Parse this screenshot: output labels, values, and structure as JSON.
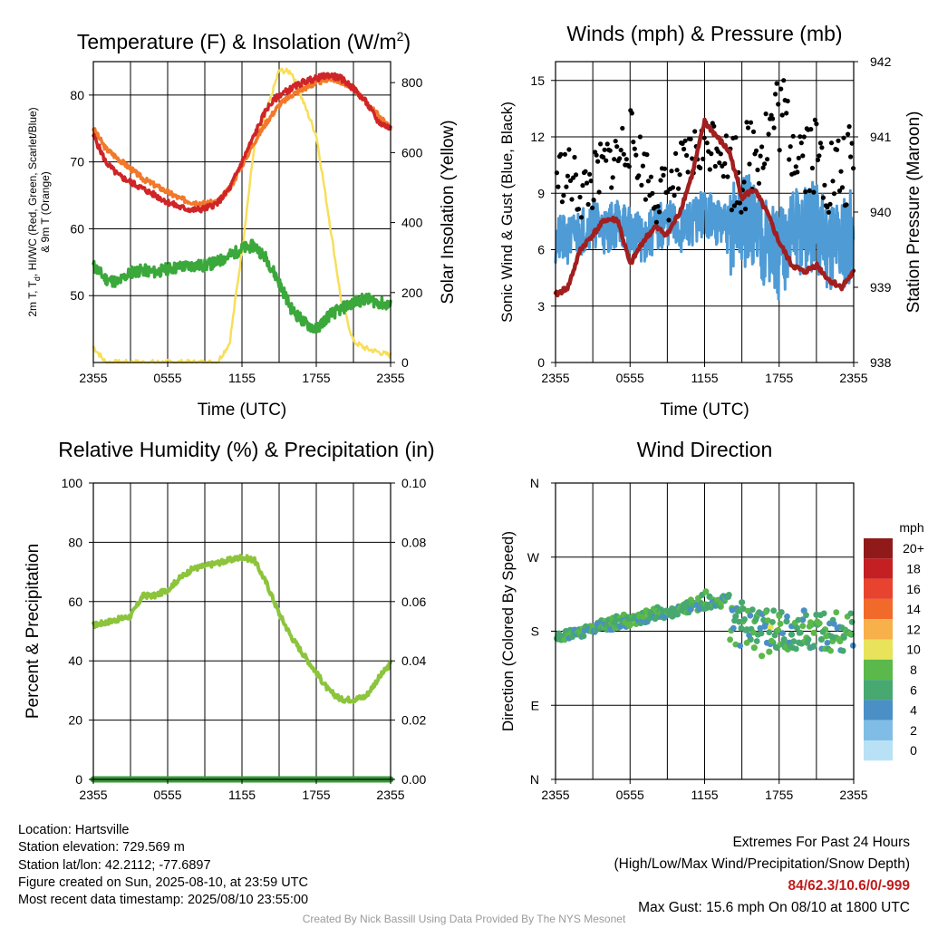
{
  "colors": {
    "red": "#cf2527",
    "orange": "#f2782a",
    "green": "#3aa83a",
    "yellow": "#f7df5a",
    "blue": "#4e9bd6",
    "maroon": "#a11f1f",
    "black": "#000000",
    "rh": "#8cc43c",
    "precip": "#3a9a3a"
  },
  "wind_speed_colors": [
    "#b8e1f5",
    "#7fbde6",
    "#4a8fc6",
    "#47a870",
    "#5bb84a",
    "#e8e35a",
    "#f7b04a",
    "#f26a2a",
    "#e8432f",
    "#c41f22",
    "#901a1a"
  ],
  "time_ticks": [
    "2355",
    "0555",
    "1155",
    "1755",
    "2355"
  ],
  "charts": [
    {
      "id": "temp",
      "title_main": "Temperature (F) & Insolation (W/m",
      "title_sup": "2",
      "title_end": ")",
      "xlabel": "Time (UTC)",
      "ylabel_lines": [
        "2m T, T",
        "d",
        ", HI/WC (Red, Green, Scarlet/Blue)",
        "& 9m T (Orange)"
      ],
      "ylabel_right": "Solar Insolation (Yellow)",
      "yticks_left": [
        "50",
        "60",
        "70",
        "80"
      ],
      "yticks_right": [
        "0",
        "200",
        "400",
        "600",
        "800"
      ]
    },
    {
      "id": "wind",
      "title": "Winds (mph) & Pressure (mb)",
      "xlabel": "Time (UTC)",
      "ylabel": "Sonic Wind & Gust (Blue, Black)",
      "ylabel_right": "Station Pressure (Maroon)",
      "yticks_left": [
        "0",
        "3",
        "6",
        "9",
        "12",
        "15"
      ],
      "yticks_right": [
        "938",
        "939",
        "940",
        "941",
        "942"
      ]
    },
    {
      "id": "rh",
      "title": "Relative Humidity (%) & Precipitation (in)",
      "ylabel": "Percent & Precipitation",
      "yticks_left": [
        "0",
        "20",
        "40",
        "60",
        "80",
        "100"
      ],
      "yticks_right": [
        "0.00",
        "0.02",
        "0.04",
        "0.06",
        "0.08",
        "0.10"
      ]
    },
    {
      "id": "wdir",
      "title": "Wind Direction",
      "ylabel": "Direction (Colored By Speed)",
      "yticks_left": [
        "N",
        "E",
        "S",
        "W",
        "N"
      ],
      "legend_title": "mph",
      "legend_labels": [
        "0",
        "2",
        "4",
        "6",
        "8",
        "10",
        "12",
        "14",
        "16",
        "18",
        "20+"
      ]
    }
  ],
  "chart_data": [
    {
      "type": "line",
      "title": "Temperature (F) & Insolation (W/m2)",
      "x_hours": [
        0,
        1,
        2,
        3,
        4,
        5,
        6,
        7,
        8,
        9,
        10,
        11,
        12,
        13,
        14,
        15,
        16,
        17,
        18,
        19,
        20,
        21,
        22,
        23,
        24
      ],
      "x_range": [
        0,
        24
      ],
      "ylim": [
        40,
        85
      ],
      "ylim_right": [
        0,
        860
      ],
      "series": [
        {
          "name": "2m T",
          "color_key": "red",
          "values": [
            74,
            70,
            68,
            67,
            66,
            65,
            64,
            63.2,
            62.8,
            63,
            63.8,
            66,
            70,
            74,
            78,
            80,
            81,
            82,
            82.5,
            83,
            82.5,
            81,
            79,
            76,
            75
          ]
        },
        {
          "name": "9m T",
          "color_key": "orange",
          "values": [
            75,
            72,
            70.5,
            69,
            67.5,
            66.5,
            65.5,
            64.5,
            64,
            63.8,
            64,
            66,
            69.5,
            73,
            76,
            78.5,
            80,
            81,
            81.8,
            82.5,
            82,
            81,
            79,
            77,
            75
          ]
        },
        {
          "name": "Td",
          "color_key": "green",
          "values": [
            54.5,
            52.5,
            52,
            53.5,
            53.8,
            53.5,
            54,
            54.3,
            54.5,
            54.5,
            55,
            56,
            57,
            57.5,
            55.5,
            52,
            48,
            46,
            45,
            47,
            48,
            49,
            49.5,
            49,
            48.5
          ]
        },
        {
          "name": "Solar Insolation",
          "color_key": "yellow",
          "axis": "right",
          "values": [
            45,
            0,
            0,
            0,
            0,
            0,
            0,
            0,
            0,
            0,
            0,
            55,
            320,
            620,
            720,
            835,
            830,
            740,
            650,
            420,
            180,
            60,
            40,
            30,
            20
          ]
        }
      ]
    },
    {
      "type": "line",
      "title": "Winds (mph) & Pressure (mb)",
      "x_hours": [
        0,
        1,
        2,
        3,
        4,
        5,
        6,
        7,
        8,
        9,
        10,
        11,
        12,
        13,
        14,
        15,
        16,
        17,
        18,
        19,
        20,
        21,
        22,
        23,
        24
      ],
      "x_range": [
        0,
        24
      ],
      "ylim": [
        0,
        16
      ],
      "ylim_right": [
        938,
        942
      ],
      "series": [
        {
          "name": "Sonic Wind",
          "color_key": "blue",
          "values": [
            6.5,
            6.5,
            7,
            7.5,
            7,
            7.5,
            7,
            6.5,
            7,
            7.5,
            7,
            7.5,
            8,
            7.5,
            7,
            7.5,
            7.5,
            6.5,
            5.5,
            7,
            7,
            7,
            6.5,
            6.5,
            7
          ]
        },
        {
          "name": "Gust",
          "color_key": "black",
          "type": "scatter",
          "values": [
            10,
            10,
            9,
            9.5,
            10.5,
            11,
            12,
            10.5,
            9,
            9,
            10,
            11,
            11.5,
            12,
            10.5,
            10,
            11.5,
            12,
            13.5,
            12,
            11.5,
            11,
            10,
            10,
            10.5
          ]
        },
        {
          "name": "Station Pressure",
          "color_key": "maroon",
          "axis": "right",
          "values": [
            938.9,
            939,
            939.5,
            939.7,
            939.9,
            939.9,
            939.3,
            939.6,
            939.8,
            939.7,
            940,
            940.5,
            941.2,
            941,
            940.8,
            940.2,
            940.3,
            940,
            939.6,
            939.3,
            939.2,
            939.3,
            939.1,
            939,
            939.2
          ]
        }
      ]
    },
    {
      "type": "line",
      "title": "Relative Humidity (%) & Precipitation (in)",
      "x_hours": [
        0,
        1,
        2,
        3,
        4,
        5,
        6,
        7,
        8,
        9,
        10,
        11,
        12,
        13,
        14,
        15,
        16,
        17,
        18,
        19,
        20,
        21,
        22,
        23,
        24
      ],
      "x_range": [
        0,
        24
      ],
      "ylim": [
        0,
        100
      ],
      "ylim_right": [
        0,
        0.1
      ],
      "series": [
        {
          "name": "Relative Humidity",
          "color_key": "rh",
          "values": [
            52,
            53,
            54,
            55,
            62,
            62,
            64,
            68,
            71,
            72,
            73,
            74,
            75,
            74,
            66,
            56,
            48,
            42,
            36,
            30,
            27,
            27,
            28,
            34,
            39
          ]
        },
        {
          "name": "Precipitation",
          "color_key": "precip",
          "axis": "right",
          "values": [
            0,
            0,
            0,
            0,
            0,
            0,
            0,
            0,
            0,
            0,
            0,
            0,
            0,
            0,
            0,
            0,
            0,
            0,
            0,
            0,
            0,
            0,
            0,
            0,
            0
          ]
        }
      ]
    },
    {
      "type": "scatter",
      "title": "Wind Direction",
      "x_range": [
        0,
        24
      ],
      "ylim": [
        0,
        360
      ],
      "yticks": [
        "N",
        "E",
        "S",
        "W",
        "N"
      ],
      "points": [
        {
          "x": 0.2,
          "dir": 173,
          "spd": 6
        },
        {
          "x": 0.5,
          "dir": 174,
          "spd": 6
        },
        {
          "x": 0.8,
          "dir": 176,
          "spd": 5
        },
        {
          "x": 1.0,
          "dir": 178,
          "spd": 6
        },
        {
          "x": 1.3,
          "dir": 181,
          "spd": 7
        },
        {
          "x": 1.6,
          "dir": 180,
          "spd": 5
        },
        {
          "x": 1.9,
          "dir": 182,
          "spd": 6
        },
        {
          "x": 2.2,
          "dir": 183,
          "spd": 7
        },
        {
          "x": 2.5,
          "dir": 184,
          "spd": 6
        },
        {
          "x": 2.8,
          "dir": 186,
          "spd": 7
        },
        {
          "x": 3.1,
          "dir": 185,
          "spd": 6
        },
        {
          "x": 3.4,
          "dir": 190,
          "spd": 7
        },
        {
          "x": 3.7,
          "dir": 193,
          "spd": 6
        },
        {
          "x": 4.0,
          "dir": 192,
          "spd": 7
        },
        {
          "x": 4.3,
          "dir": 194,
          "spd": 6
        },
        {
          "x": 4.6,
          "dir": 196,
          "spd": 7
        },
        {
          "x": 4.9,
          "dir": 198,
          "spd": 6
        },
        {
          "x": 5.2,
          "dir": 196,
          "spd": 8
        },
        {
          "x": 5.5,
          "dir": 200,
          "spd": 7
        },
        {
          "x": 5.8,
          "dir": 197,
          "spd": 6
        },
        {
          "x": 6.1,
          "dir": 194,
          "spd": 7
        },
        {
          "x": 6.4,
          "dir": 198,
          "spd": 6
        },
        {
          "x": 6.7,
          "dir": 200,
          "spd": 7
        },
        {
          "x": 7.0,
          "dir": 202,
          "spd": 6
        },
        {
          "x": 7.3,
          "dir": 205,
          "spd": 7
        },
        {
          "x": 7.6,
          "dir": 203,
          "spd": 6
        },
        {
          "x": 7.9,
          "dir": 207,
          "spd": 7
        },
        {
          "x": 8.2,
          "dir": 209,
          "spd": 6
        },
        {
          "x": 8.5,
          "dir": 206,
          "spd": 5
        },
        {
          "x": 8.8,
          "dir": 203,
          "spd": 4
        },
        {
          "x": 9.1,
          "dir": 200,
          "spd": 7
        },
        {
          "x": 9.4,
          "dir": 198,
          "spd": 6
        },
        {
          "x": 9.7,
          "dir": 204,
          "spd": 7
        },
        {
          "x": 10.0,
          "dir": 208,
          "spd": 6
        },
        {
          "x": 10.3,
          "dir": 212,
          "spd": 7
        },
        {
          "x": 10.6,
          "dir": 215,
          "spd": 6
        },
        {
          "x": 10.9,
          "dir": 218,
          "spd": 7
        },
        {
          "x": 11.2,
          "dir": 214,
          "spd": 6
        },
        {
          "x": 11.5,
          "dir": 220,
          "spd": 7
        },
        {
          "x": 11.8,
          "dir": 224,
          "spd": 6
        },
        {
          "x": 12.1,
          "dir": 228,
          "spd": 7
        },
        {
          "x": 12.4,
          "dir": 222,
          "spd": 6
        },
        {
          "x": 12.7,
          "dir": 218,
          "spd": 7
        },
        {
          "x": 13.0,
          "dir": 214,
          "spd": 6
        },
        {
          "x": 13.3,
          "dir": 210,
          "spd": 7
        },
        {
          "x": 13.6,
          "dir": 217,
          "spd": 5
        },
        {
          "x": 13.9,
          "dir": 222,
          "spd": 6
        },
        {
          "x": 14.2,
          "dir": 208,
          "spd": 7
        },
        {
          "x": 14.5,
          "dir": 198,
          "spd": 6
        },
        {
          "x": 14.8,
          "dir": 205,
          "spd": 5
        },
        {
          "x": 15.1,
          "dir": 192,
          "spd": 7
        },
        {
          "x": 15.4,
          "dir": 182,
          "spd": 6
        },
        {
          "x": 15.7,
          "dir": 170,
          "spd": 5
        },
        {
          "x": 16.0,
          "dir": 160,
          "spd": 7
        },
        {
          "x": 16.3,
          "dir": 176,
          "spd": 6
        },
        {
          "x": 16.6,
          "dir": 150,
          "spd": 8
        },
        {
          "x": 16.9,
          "dir": 188,
          "spd": 4
        },
        {
          "x": 17.2,
          "dir": 155,
          "spd": 7
        },
        {
          "x": 17.5,
          "dir": 166,
          "spd": 6
        },
        {
          "x": 17.8,
          "dir": 180,
          "spd": 5
        },
        {
          "x": 18.1,
          "dir": 164,
          "spd": 7
        },
        {
          "x": 18.4,
          "dir": 170,
          "spd": 6
        },
        {
          "x": 18.7,
          "dir": 158,
          "spd": 7
        },
        {
          "x": 19.0,
          "dir": 176,
          "spd": 6
        },
        {
          "x": 19.3,
          "dir": 186,
          "spd": 7
        },
        {
          "x": 19.6,
          "dir": 166,
          "spd": 6
        },
        {
          "x": 19.9,
          "dir": 194,
          "spd": 4
        },
        {
          "x": 20.2,
          "dir": 172,
          "spd": 7
        },
        {
          "x": 20.5,
          "dir": 160,
          "spd": 6
        },
        {
          "x": 20.8,
          "dir": 178,
          "spd": 7
        },
        {
          "x": 21.1,
          "dir": 188,
          "spd": 6
        },
        {
          "x": 21.4,
          "dir": 170,
          "spd": 5
        },
        {
          "x": 21.7,
          "dir": 182,
          "spd": 7
        },
        {
          "x": 22.0,
          "dir": 175,
          "spd": 6
        },
        {
          "x": 22.3,
          "dir": 168,
          "spd": 7
        },
        {
          "x": 22.6,
          "dir": 172,
          "spd": 6
        },
        {
          "x": 22.9,
          "dir": 168,
          "spd": 7
        },
        {
          "x": 23.2,
          "dir": 174,
          "spd": 6
        },
        {
          "x": 23.5,
          "dir": 178,
          "spd": 7
        },
        {
          "x": 23.8,
          "dir": 176,
          "spd": 6
        },
        {
          "x": 16.2,
          "dir": 198,
          "spd": 6
        },
        {
          "x": 17.0,
          "dir": 205,
          "spd": 5
        },
        {
          "x": 18.0,
          "dir": 200,
          "spd": 7
        },
        {
          "x": 18.6,
          "dir": 192,
          "spd": 5
        },
        {
          "x": 20.0,
          "dir": 205,
          "spd": 4
        },
        {
          "x": 21.0,
          "dir": 200,
          "spd": 6
        },
        {
          "x": 15.0,
          "dir": 215,
          "spd": 6
        },
        {
          "x": 17.3,
          "dir": 185,
          "spd": 10
        }
      ]
    }
  ],
  "footer": {
    "location": "Location: Hartsville",
    "elevation": "Station elevation: 729.569 m",
    "latlon": "Station lat/lon: 42.2112; -77.6897",
    "created": "Figure created on Sun, 2025-08-10, at 23:59 UTC",
    "recent": "Most recent data timestamp: 2025/08/10 23:55:00",
    "extremes_title": "Extremes For Past 24 Hours",
    "extremes_desc": "(High/Low/Max Wind/Precipitation/Snow Depth)",
    "extremes_values": "84/62.3/10.6/0/-999",
    "max_gust": "Max Gust: 15.6 mph On 08/10 at 1800 UTC",
    "credit": "Created By Nick Bassill Using Data Provided By The NYS Mesonet"
  }
}
